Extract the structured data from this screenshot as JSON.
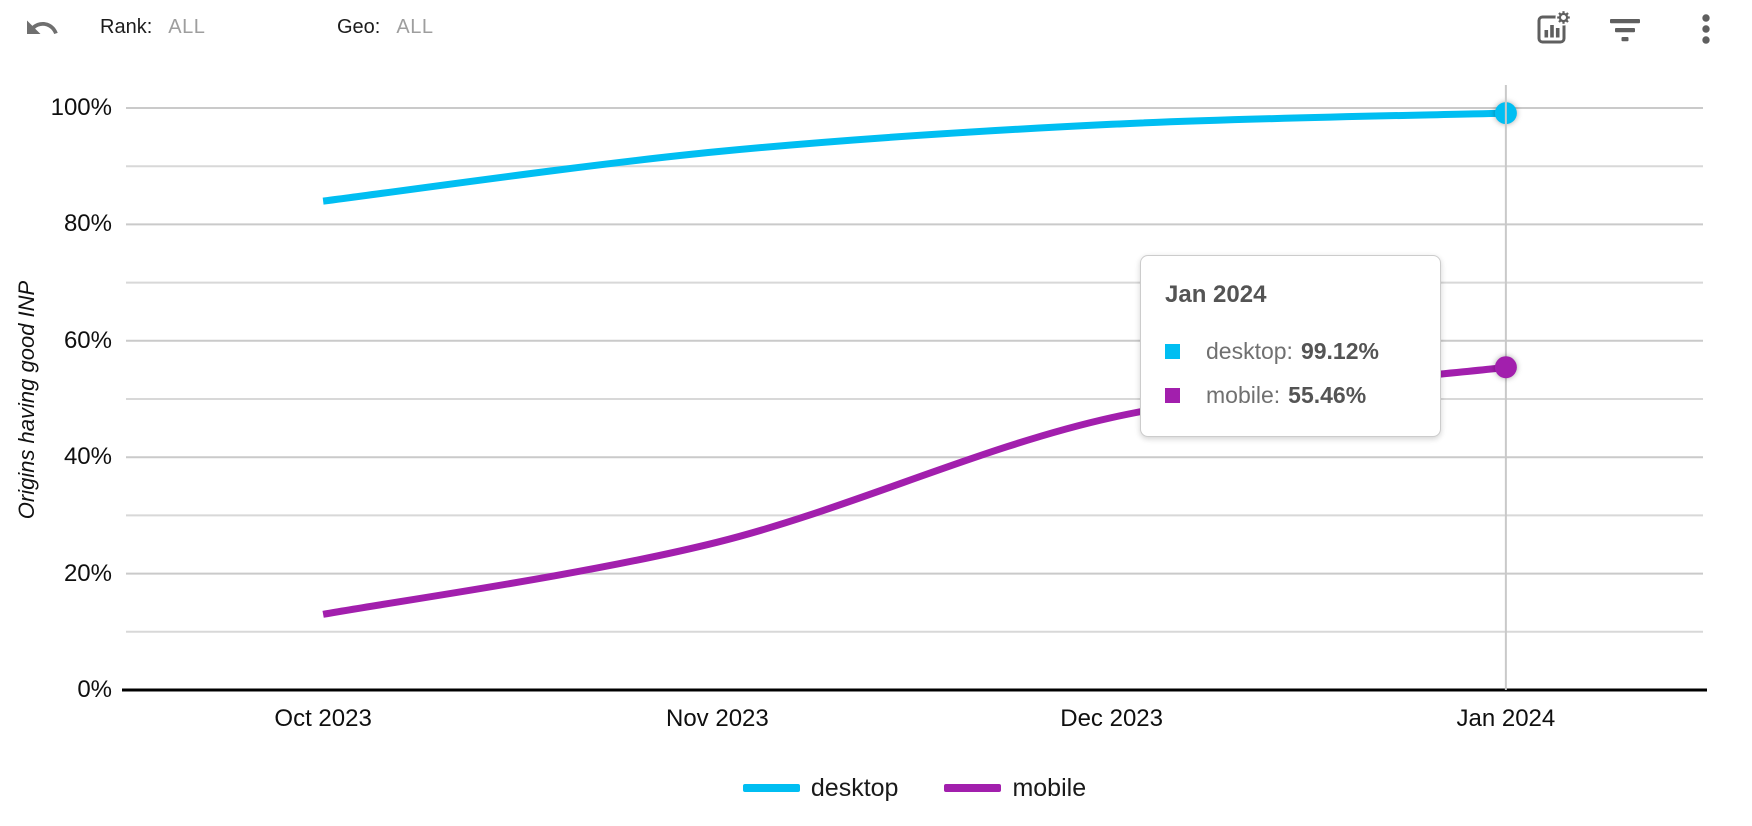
{
  "topbar": {
    "rank_label": "Rank:",
    "rank_value": "ALL",
    "geo_label": "Geo:",
    "geo_value": "ALL",
    "icon_color": "#5f5f5f",
    "undo_icon_color": "#6f6f6f"
  },
  "chart_data": {
    "type": "line",
    "ylabel": "Origins having good INP",
    "categories": [
      "Oct 2023",
      "Nov 2023",
      "Dec 2023",
      "Jan 2024"
    ],
    "series": [
      {
        "name": "desktop",
        "color": "#00BEF2",
        "values": [
          84.0,
          92.5,
          97.2,
          99.12
        ]
      },
      {
        "name": "mobile",
        "color": "#A21FAD",
        "values": [
          13.0,
          25.4,
          46.8,
          55.46
        ]
      }
    ],
    "ylim": [
      0,
      100
    ],
    "y_major_ticks": [
      0,
      20,
      40,
      60,
      80,
      100
    ],
    "y_tick_labels": [
      "0%",
      "20%",
      "40%",
      "60%",
      "80%",
      "100%"
    ],
    "y_minor_ticks": [
      10,
      30,
      50,
      70,
      90
    ],
    "grid": true,
    "legend_position": "bottom",
    "crosshair_x": "Jan 2024",
    "markers_at_crosshair": true
  },
  "tooltip": {
    "title": "Jan 2024",
    "rows": [
      {
        "label": "desktop:",
        "value": "99.12%"
      },
      {
        "label": "mobile:",
        "value": "55.46%"
      }
    ]
  },
  "colors": {
    "gridline_major": "#cacaca",
    "gridline_minor": "#d8d8d8",
    "axis_line": "#000000",
    "crosshair": "#c9c9c9"
  }
}
